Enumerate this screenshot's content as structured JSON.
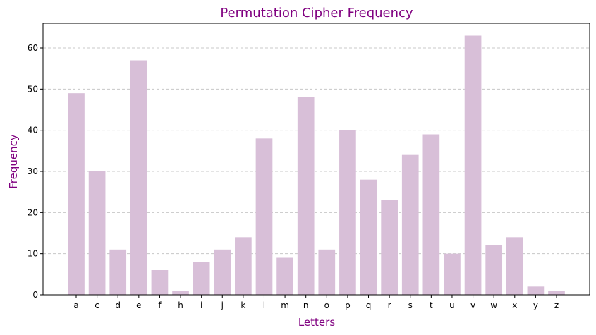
{
  "colors": {
    "bar": "#d8bfd8",
    "title": "#800080",
    "axis_label": "#800080",
    "grid": "#c8c8c8",
    "axis": "#000000"
  },
  "chart_data": {
    "type": "bar",
    "title": "Permutation Cipher Frequency",
    "xlabel": "Letters",
    "ylabel": "Frequency",
    "categories": [
      "a",
      "c",
      "d",
      "e",
      "f",
      "h",
      "i",
      "j",
      "k",
      "l",
      "m",
      "n",
      "o",
      "p",
      "q",
      "r",
      "s",
      "t",
      "u",
      "v",
      "w",
      "x",
      "y",
      "z"
    ],
    "values": [
      49,
      30,
      11,
      57,
      6,
      1,
      8,
      11,
      14,
      38,
      9,
      48,
      11,
      40,
      28,
      23,
      34,
      39,
      10,
      63,
      12,
      14,
      2,
      1
    ],
    "ylim": [
      0,
      66
    ],
    "yticks": [
      0,
      10,
      20,
      30,
      40,
      50,
      60
    ],
    "grid": "y-dashed",
    "legend": "none"
  }
}
